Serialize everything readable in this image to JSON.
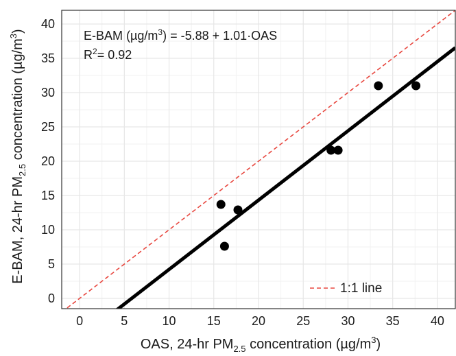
{
  "chart_data": {
    "type": "scatter",
    "xlabel": {
      "pre": "OAS, 24-hr PM",
      "sub": "2.5",
      "post": " concentration (µg/m",
      "sup": "3",
      "end": ")"
    },
    "ylabel": {
      "pre": "E-BAM, 24-hr PM",
      "sub": "2.5",
      "post": " concentration (µg/m",
      "sup": "3",
      "end": ")"
    },
    "xlim": [
      -2,
      42
    ],
    "ylim": [
      -1.5,
      42
    ],
    "xticks": [
      0,
      5,
      10,
      15,
      20,
      25,
      30,
      35,
      40
    ],
    "yticks": [
      0,
      5,
      10,
      15,
      20,
      25,
      30,
      35,
      40
    ],
    "grid": true,
    "points": [
      {
        "x": 15.8,
        "y": 13.7
      },
      {
        "x": 16.2,
        "y": 7.6
      },
      {
        "x": 17.7,
        "y": 12.9
      },
      {
        "x": 28.1,
        "y": 21.6
      },
      {
        "x": 28.9,
        "y": 21.6
      },
      {
        "x": 33.4,
        "y": 31.0
      },
      {
        "x": 37.6,
        "y": 31.0
      }
    ],
    "fit_line": {
      "intercept": -5.88,
      "slope": 1.01
    },
    "reference_line": {
      "intercept": 0,
      "slope": 1,
      "color": "#e8473f",
      "dash": true
    },
    "equation": {
      "pre": "E-BAM (µg/m",
      "sup": "3",
      "post": ") = -5.88 + 1.01·OAS"
    },
    "r2": {
      "pre": "R",
      "sup": "2",
      "post": "= 0.92"
    },
    "legend": {
      "label": "1:1 line",
      "position": "bottom-right"
    },
    "colors": {
      "points": "#000000",
      "fit": "#000000",
      "grid": "#e6e6e6"
    }
  }
}
